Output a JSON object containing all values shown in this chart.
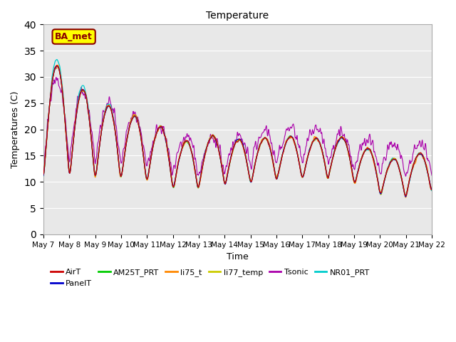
{
  "title": "Temperature",
  "ylabel": "Temperatures (C)",
  "xlabel": "Time",
  "ylim": [
    0,
    40
  ],
  "yticks": [
    0,
    5,
    10,
    15,
    20,
    25,
    30,
    35,
    40
  ],
  "series_colors": {
    "AirT": "#cc0000",
    "PanelT": "#0000cc",
    "AM25T_PRT": "#00cc00",
    "li75_t": "#ff8800",
    "li77_temp": "#cccc00",
    "Tsonic": "#aa00aa",
    "NR01_PRT": "#00cccc"
  },
  "legend_label": "BA_met",
  "legend_box_facecolor": "#ffff00",
  "legend_box_edgecolor": "#8b0000",
  "background_color": "#e8e8e8",
  "n_points": 1500,
  "day_start": 7,
  "day_end": 22
}
